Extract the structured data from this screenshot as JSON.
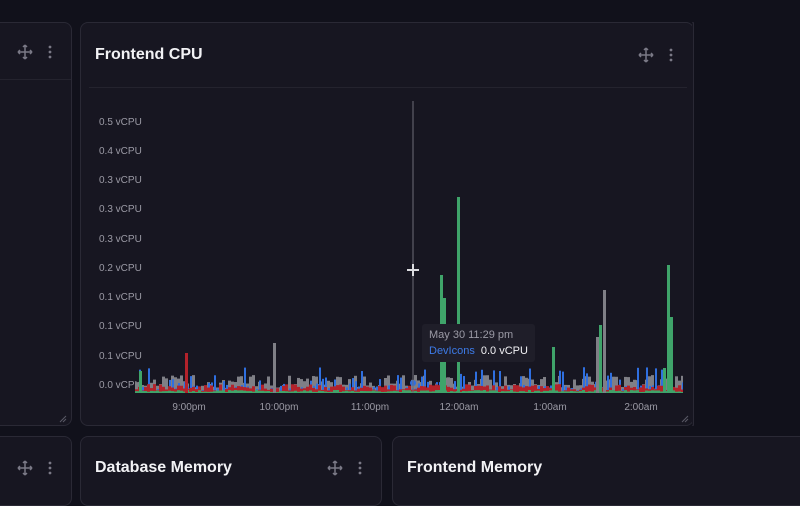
{
  "panels": {
    "left_partial": {
      "title": ""
    },
    "frontend_cpu": {
      "title": "Frontend CPU"
    },
    "database_memory": {
      "title": "Database Memory"
    },
    "frontend_memory": {
      "title": "Frontend Memory"
    }
  },
  "icons": {
    "move": "move-icon",
    "more": "more-vertical-icon",
    "resize": "resize-handle-icon",
    "crosshair": "crosshair-cursor-icon"
  },
  "tooltip": {
    "time": "May 30 11:29 pm",
    "series": "DevIcons",
    "value": "0.0 vCPU"
  },
  "colors": {
    "blue": "#2f6fe0",
    "gray": "#7f7f86",
    "red": "#b3222b",
    "green": "#3fa46a"
  },
  "chart_data": {
    "type": "bar",
    "title": "Frontend CPU",
    "xlabel": "",
    "ylabel": "",
    "y_tick_labels": [
      "0.5 vCPU",
      "0.4 vCPU",
      "0.3 vCPU",
      "0.3 vCPU",
      "0.3 vCPU",
      "0.2 vCPU",
      "0.1 vCPU",
      "0.1 vCPU",
      "0.1 vCPU",
      "0.0 vCPU"
    ],
    "x_tick_labels": [
      "9:00pm",
      "10:00pm",
      "11:00pm",
      "12:00am",
      "1:00am",
      "2:00am"
    ],
    "ylim": [
      0,
      0.5
    ],
    "grid": false,
    "legend": "tooltip",
    "series": [
      {
        "name": "DevIcons",
        "color": "#2f6fe0",
        "description": "blue, mostly 0.0-0.03 vCPU"
      },
      {
        "name": "gray series",
        "color": "#7f7f86",
        "description": "gray, ~0.01-0.03, spikes ~0.07 at 10:10pm and ~0.17 at 1:30am"
      },
      {
        "name": "red series",
        "color": "#b3222b",
        "description": "red, ~0.0-0.01, spike ~0.05 at 8:45pm"
      },
      {
        "name": "green series",
        "color": "#3fa46a",
        "description": "green, near 0, spikes ~0.19 at 11:55pm, ~0.33 at 12:05am, ~0.12 at 1:28am, ~0.22 at 2:20am"
      }
    ],
    "annotations": [
      {
        "x": "11:29pm",
        "type": "crosshair",
        "tooltip": "DevIcons 0.0 vCPU"
      }
    ]
  }
}
